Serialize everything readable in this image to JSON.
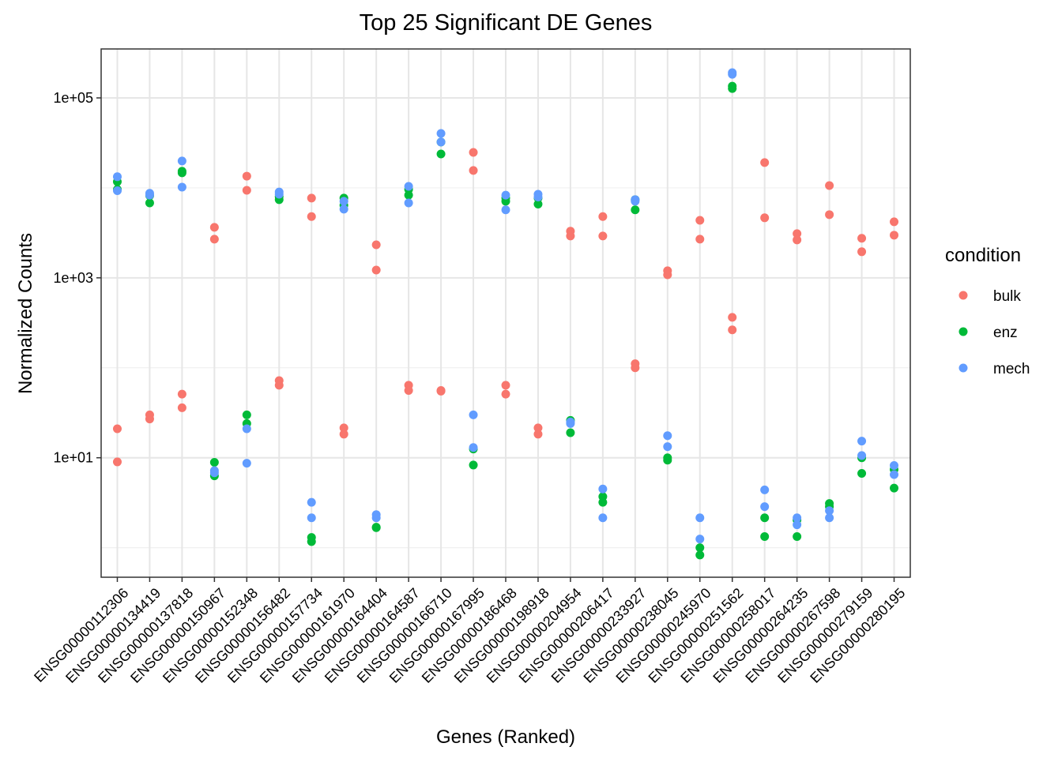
{
  "chart_data": {
    "type": "scatter",
    "title": "Top 25 Significant DE Genes",
    "x_label": "Genes (Ranked)",
    "y_label": "Normalized Counts",
    "legend_title": "condition",
    "legend_position": "right",
    "y_scale": "log",
    "grid": true,
    "categories": [
      "ENSG00000112306",
      "ENSG00000134419",
      "ENSG00000137818",
      "ENSG00000150967",
      "ENSG00000152348",
      "ENSG00000156482",
      "ENSG00000157734",
      "ENSG00000161970",
      "ENSG00000164404",
      "ENSG00000164587",
      "ENSG00000166710",
      "ENSG00000167995",
      "ENSG00000186468",
      "ENSG00000198918",
      "ENSG00000204954",
      "ENSG00000206417",
      "ENSG00000233927",
      "ENSG00000238045",
      "ENSG00000245970",
      "ENSG00000251562",
      "ENSG00000258017",
      "ENSG00000264235",
      "ENSG00000267598",
      "ENSG00000279159",
      "ENSG00000280195"
    ],
    "series": [
      {
        "name": "bulk",
        "color": "#F8766D",
        "values": [
          [
            21,
            9
          ],
          [
            30,
            27
          ],
          [
            51,
            36
          ],
          [
            3640,
            2690
          ],
          [
            13500,
            9400
          ],
          [
            72,
            64
          ],
          [
            7700,
            4800
          ],
          [
            21.5,
            18.3
          ],
          [
            2330,
            1220
          ],
          [
            64,
            56
          ],
          [
            56,
            55
          ],
          [
            24800,
            15600
          ],
          [
            64,
            51
          ],
          [
            21.5,
            18.3
          ],
          [
            3300,
            2920
          ],
          [
            4800,
            2920
          ],
          [
            111,
            100
          ],
          [
            1200,
            1080
          ],
          [
            4360,
            2690
          ],
          [
            364,
            264
          ],
          [
            19100,
            4650
          ],
          [
            3100,
            2640
          ],
          [
            10600,
            5040
          ],
          [
            2750,
            1950
          ],
          [
            4200,
            2980
          ]
        ]
      },
      {
        "name": "enz",
        "color": "#00BA38",
        "values": [
          [
            11700,
            9600
          ],
          [
            8200,
            6800
          ],
          [
            15300,
            14700
          ],
          [
            8.9,
            6.3
          ],
          [
            30,
            24
          ],
          [
            8000,
            7400
          ],
          [
            1.3,
            1.17
          ],
          [
            7700,
            6400
          ],
          [
            1.69,
            1.67
          ],
          [
            9600,
            8300
          ],
          [
            32300,
            23800
          ],
          [
            12.5,
            8.3
          ],
          [
            7700,
            7100
          ],
          [
            7700,
            6600
          ],
          [
            26,
            19
          ],
          [
            3.7,
            3.2
          ],
          [
            7400,
            5700
          ],
          [
            10,
            9.4
          ],
          [
            1,
            0.83
          ],
          [
            135000,
            127000
          ],
          [
            2.15,
            1.33
          ],
          [
            2.03,
            1.33
          ],
          [
            3.1,
            2.86
          ],
          [
            10,
            6.7
          ],
          [
            7.4,
            4.6
          ]
        ]
      },
      {
        "name": "mech",
        "color": "#619CFF",
        "values": [
          [
            13300,
            9300
          ],
          [
            8700,
            8300
          ],
          [
            19900,
            10200
          ],
          [
            7.2,
            6.8
          ],
          [
            21,
            8.7
          ],
          [
            9000,
            8500
          ],
          [
            3.2,
            2.15
          ],
          [
            7100,
            5800
          ],
          [
            2.33,
            2.15
          ],
          [
            10400,
            6800
          ],
          [
            40300,
            32300
          ],
          [
            30,
            13
          ],
          [
            8300,
            5700
          ],
          [
            8500,
            7900
          ],
          [
            25,
            24
          ],
          [
            4.5,
            2.15
          ],
          [
            7400,
            7100
          ],
          [
            17.6,
            13.3
          ],
          [
            2.15,
            1.25
          ],
          [
            191000,
            183000
          ],
          [
            4.4,
            2.86
          ],
          [
            2.15,
            1.8
          ],
          [
            2.58,
            2.15
          ],
          [
            15.3,
            10.6
          ],
          [
            8.2,
            6.5
          ]
        ]
      }
    ],
    "ylim": [
      0.47,
      350000
    ],
    "yticks": [
      {
        "value": 10,
        "label": "1e+01"
      },
      {
        "value": 1000,
        "label": "1e+03"
      },
      {
        "value": 100000,
        "label": "1e+05"
      }
    ],
    "y_minor_gridlines": [
      1,
      100,
      10000
    ]
  }
}
